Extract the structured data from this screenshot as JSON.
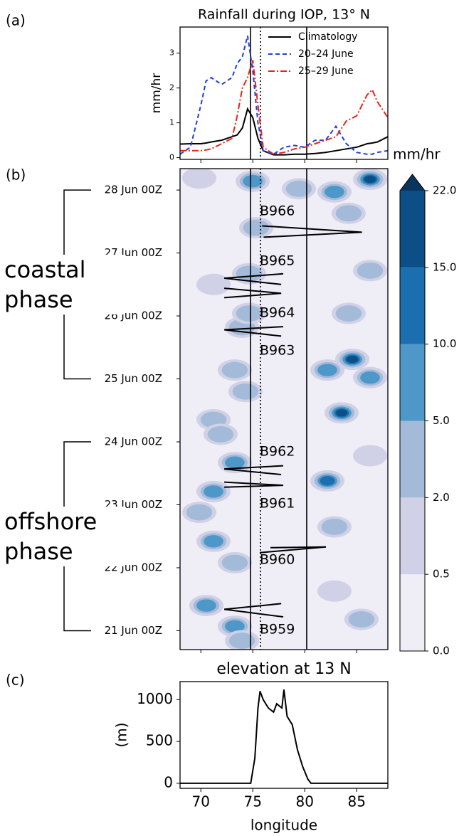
{
  "chart_data": [
    {
      "type": "line",
      "panel_label": "(a)",
      "title": "Rainfall during IOP, 13° N",
      "ylabel": "mm/hr",
      "x": [
        68,
        69,
        70,
        70.5,
        71,
        72,
        73,
        73.5,
        74,
        74.5,
        75,
        75.5,
        76,
        77,
        78,
        79,
        80,
        81,
        82,
        83,
        84,
        85,
        86,
        86.5,
        87,
        88
      ],
      "series": [
        {
          "name": "Climatology",
          "color": "#000000",
          "dash": "solid",
          "values": [
            0.39,
            0.4,
            0.4,
            0.42,
            0.45,
            0.5,
            0.6,
            0.65,
            0.85,
            1.4,
            1.15,
            0.55,
            0.2,
            0.08,
            0.08,
            0.1,
            0.1,
            0.12,
            0.15,
            0.2,
            0.25,
            0.3,
            0.4,
            0.42,
            0.45,
            0.6
          ]
        },
        {
          "name": "20–24 June",
          "color": "#1f3fdc",
          "dash": "dashed",
          "values": [
            0.1,
            0.3,
            1.5,
            2.2,
            2.3,
            2.1,
            2.3,
            2.7,
            2.9,
            3.5,
            2.5,
            1.0,
            0.2,
            0.1,
            0.3,
            0.35,
            0.3,
            0.5,
            0.5,
            0.9,
            0.4,
            0.15,
            0.1,
            0.1,
            0.15,
            0.2
          ]
        },
        {
          "name": "25–29 June",
          "color": "#e8231f",
          "dash": "dashdot",
          "values": [
            0.2,
            0.2,
            0.2,
            0.22,
            0.25,
            0.4,
            0.55,
            1.2,
            2.0,
            2.3,
            2.8,
            1.5,
            0.3,
            0.1,
            0.15,
            0.25,
            0.3,
            0.4,
            0.5,
            0.6,
            1.05,
            1.2,
            1.8,
            1.95,
            1.6,
            1.15
          ]
        }
      ],
      "xlim": [
        68,
        88
      ],
      "ylim": [
        -0.05,
        3.75
      ],
      "yticks": [
        0,
        1,
        2,
        3
      ],
      "legend": "upper right",
      "vlines": [
        {
          "x": 74.78,
          "style": "solid"
        },
        {
          "x": 75.74,
          "style": "dotted"
        },
        {
          "x": 80.19,
          "style": "solid"
        }
      ]
    },
    {
      "type": "contour",
      "panel_label": "(b)",
      "xlim": [
        68,
        88
      ],
      "ylim": [
        20.7,
        28.34
      ],
      "yticks": [
        {
          "value": 21,
          "label": "21 Jun 00Z"
        },
        {
          "value": 22,
          "label": "22 Jun 00Z"
        },
        {
          "value": 23,
          "label": "23 Jun 00Z"
        },
        {
          "value": 24,
          "label": "24 Jun 00Z"
        },
        {
          "value": 25,
          "label": "25 Jun 00Z"
        },
        {
          "value": 26,
          "label": "26 Jun 00Z"
        },
        {
          "value": 27,
          "label": "27 Jun 00Z"
        },
        {
          "value": 28,
          "label": "28 Jun 00Z"
        }
      ],
      "rain": {
        "lon": [
          86.29,
          82.86,
          84.23,
          74.99,
          75.33,
          79.44,
          69.85,
          74.64,
          71.22,
          86.29,
          84.23,
          73.96,
          84.58,
          82.18,
          86.29,
          73.27,
          83.55,
          71.22,
          74.3,
          71.9,
          73.27,
          71.22,
          82.18,
          69.85,
          71.22,
          73.27,
          70.53,
          73.27,
          73.96,
          82.86,
          85.46,
          82.86,
          86.29,
          74.64
        ],
        "time": [
          28.17,
          27.97,
          27.63,
          28.14,
          27.4,
          28.02,
          28.19,
          26.67,
          26.5,
          26.72,
          26.04,
          25.82,
          25.31,
          25.14,
          25.02,
          25.14,
          24.46,
          24.35,
          24.8,
          24.12,
          23.67,
          23.21,
          23.38,
          22.88,
          22.42,
          22.08,
          21.4,
          21.07,
          20.84,
          22.65,
          21.18,
          21.63,
          23.78,
          26.04
        ],
        "values": [
          18,
          6,
          3,
          5,
          4,
          2,
          1,
          3,
          1,
          3,
          4,
          3,
          17,
          8,
          6,
          3,
          18,
          2,
          4,
          3,
          6,
          7,
          14,
          2,
          6,
          3,
          7,
          5,
          4,
          2,
          2,
          1,
          1,
          2
        ]
      },
      "vlines": [
        {
          "x": 74.78,
          "style": "solid"
        },
        {
          "x": 75.74,
          "style": "dotted"
        },
        {
          "x": 80.19,
          "style": "solid"
        }
      ],
      "tracks": [
        {
          "name": "B966",
          "lon": [
            75.9,
            85.51,
            76.04
          ],
          "time": [
            27.43,
            27.33,
            27.25
          ]
        },
        {
          "name": "B965",
          "lon": [
            77.93,
            72.25,
            77.73
          ],
          "time": [
            26.67,
            26.6,
            26.5
          ]
        },
        {
          "name": "B964",
          "lon": [
            72.25,
            77.73,
            72.25
          ],
          "time": [
            26.44,
            26.36,
            26.29
          ]
        },
        {
          "name": "B963",
          "lon": [
            77.93,
            72.25,
            77.73
          ],
          "time": [
            25.83,
            25.78,
            25.68
          ]
        },
        {
          "name": "B962",
          "lon": [
            77.93,
            72.25,
            77.73
          ],
          "time": [
            23.62,
            23.57,
            23.48
          ]
        },
        {
          "name": "B961",
          "lon": [
            72.25,
            77.93,
            72.25
          ],
          "time": [
            23.36,
            23.31,
            23.28
          ]
        },
        {
          "name": "B960",
          "lon": [
            76.7,
            82.04,
            75.67
          ],
          "time": [
            22.32,
            22.33,
            22.24
          ]
        },
        {
          "name": "B959",
          "lon": [
            77.73,
            72.25,
            77.93
          ],
          "time": [
            21.43,
            21.34,
            21.22
          ]
        }
      ],
      "phases": [
        {
          "label": "coastal phase",
          "start": 25,
          "end": 28
        },
        {
          "label": "offshore phase",
          "start": 21,
          "end": 24
        }
      ],
      "colorbar": {
        "title": "mm/hr",
        "ticks": [
          {
            "value": 0,
            "label": "0.0"
          },
          {
            "value": 0.5,
            "label": "0.5"
          },
          {
            "value": 2,
            "label": "2.0"
          },
          {
            "value": 5,
            "label": "5.0"
          },
          {
            "value": 10,
            "label": "10.0"
          },
          {
            "value": 15,
            "label": "15.0"
          },
          {
            "value": 22,
            "label": "22.0"
          }
        ],
        "colors": [
          "#efedf5",
          "#d0d1e6",
          "#a3bad9",
          "#4d98c8",
          "#1c6fae",
          "#0b4f86"
        ],
        "extend_color": "#08345e"
      }
    },
    {
      "type": "line",
      "panel_label": "(c)",
      "title": "elevation at 13 N",
      "xlabel": "longitude",
      "ylabel": "(m)",
      "x": [
        68,
        74.8,
        75.2,
        75.5,
        75.7,
        76,
        76.5,
        77,
        77.3,
        77.8,
        78,
        78.3,
        78.8,
        79.3,
        79.8,
        80.3,
        80.6,
        88
      ],
      "values": [
        0,
        0,
        300,
        900,
        1100,
        1000,
        900,
        850,
        950,
        900,
        1120,
        800,
        700,
        400,
        200,
        50,
        0,
        0
      ],
      "color": "#000000",
      "xlim": [
        68,
        88
      ],
      "ylim": [
        -60,
        1215
      ],
      "xticks": [
        70,
        75,
        80,
        85
      ],
      "yticks": [
        0,
        500,
        1000
      ]
    }
  ]
}
